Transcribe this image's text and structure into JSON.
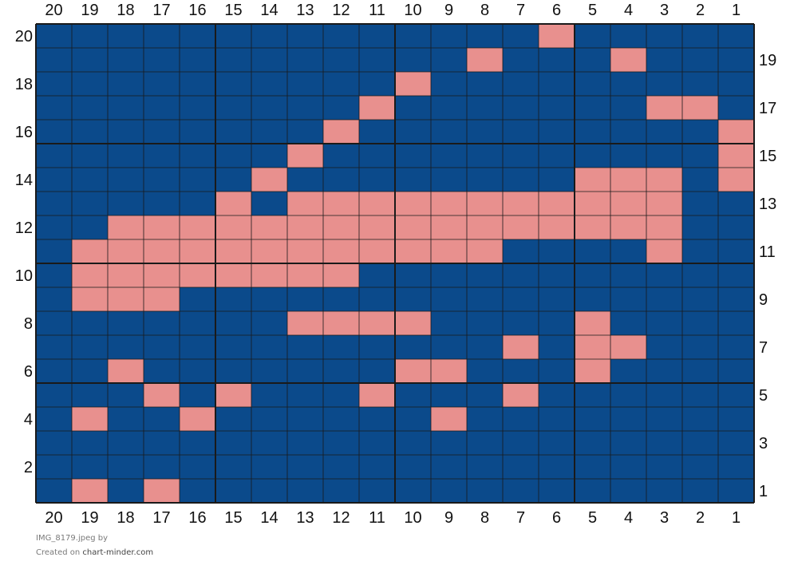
{
  "chart_data": {
    "type": "heatmap",
    "columns": [
      20,
      19,
      18,
      17,
      16,
      15,
      14,
      13,
      12,
      11,
      10,
      9,
      8,
      7,
      6,
      5,
      4,
      3,
      2,
      1
    ],
    "rows_top_to_bottom": [
      20,
      19,
      18,
      17,
      16,
      15,
      14,
      13,
      12,
      11,
      10,
      9,
      8,
      7,
      6,
      5,
      4,
      3,
      2,
      1
    ],
    "left_row_labels": [
      20,
      18,
      16,
      14,
      12,
      10,
      8,
      6,
      4,
      2
    ],
    "right_row_labels": [
      19,
      17,
      15,
      13,
      11,
      9,
      7,
      5,
      3,
      1
    ],
    "colors": {
      "background": "#0b4a8b",
      "highlight": "#e8908e",
      "cell_line": "#1a1a1a"
    },
    "highlighted_cells": [
      [
        20,
        6
      ],
      [
        19,
        8
      ],
      [
        19,
        4
      ],
      [
        18,
        10
      ],
      [
        17,
        11
      ],
      [
        17,
        3
      ],
      [
        17,
        2
      ],
      [
        16,
        12
      ],
      [
        16,
        1
      ],
      [
        15,
        13
      ],
      [
        15,
        1
      ],
      [
        14,
        14
      ],
      [
        14,
        5
      ],
      [
        14,
        4
      ],
      [
        14,
        3
      ],
      [
        14,
        1
      ],
      [
        13,
        15
      ],
      [
        13,
        13
      ],
      [
        13,
        12
      ],
      [
        13,
        11
      ],
      [
        13,
        10
      ],
      [
        13,
        9
      ],
      [
        13,
        8
      ],
      [
        13,
        7
      ],
      [
        13,
        6
      ],
      [
        13,
        5
      ],
      [
        13,
        4
      ],
      [
        13,
        3
      ],
      [
        12,
        18
      ],
      [
        12,
        17
      ],
      [
        12,
        16
      ],
      [
        12,
        15
      ],
      [
        12,
        14
      ],
      [
        12,
        13
      ],
      [
        12,
        12
      ],
      [
        12,
        11
      ],
      [
        12,
        10
      ],
      [
        12,
        9
      ],
      [
        12,
        8
      ],
      [
        12,
        7
      ],
      [
        12,
        6
      ],
      [
        12,
        5
      ],
      [
        12,
        4
      ],
      [
        12,
        3
      ],
      [
        11,
        19
      ],
      [
        11,
        18
      ],
      [
        11,
        17
      ],
      [
        11,
        16
      ],
      [
        11,
        15
      ],
      [
        11,
        14
      ],
      [
        11,
        13
      ],
      [
        11,
        12
      ],
      [
        11,
        11
      ],
      [
        11,
        10
      ],
      [
        11,
        9
      ],
      [
        11,
        8
      ],
      [
        11,
        3
      ],
      [
        10,
        19
      ],
      [
        10,
        18
      ],
      [
        10,
        17
      ],
      [
        10,
        16
      ],
      [
        10,
        15
      ],
      [
        10,
        14
      ],
      [
        10,
        13
      ],
      [
        10,
        12
      ],
      [
        9,
        19
      ],
      [
        9,
        18
      ],
      [
        9,
        17
      ],
      [
        8,
        13
      ],
      [
        8,
        12
      ],
      [
        8,
        11
      ],
      [
        8,
        10
      ],
      [
        8,
        5
      ],
      [
        7,
        7
      ],
      [
        7,
        5
      ],
      [
        7,
        4
      ],
      [
        6,
        18
      ],
      [
        6,
        10
      ],
      [
        6,
        9
      ],
      [
        6,
        5
      ],
      [
        5,
        17
      ],
      [
        5,
        15
      ],
      [
        5,
        11
      ],
      [
        5,
        7
      ],
      [
        4,
        19
      ],
      [
        4,
        16
      ],
      [
        4,
        9
      ],
      [
        1,
        19
      ],
      [
        1,
        17
      ]
    ]
  },
  "caption": {
    "filename": "IMG_8179.jpeg",
    "by": "by",
    "created_on": "Created on",
    "site": "chart-minder.com"
  }
}
